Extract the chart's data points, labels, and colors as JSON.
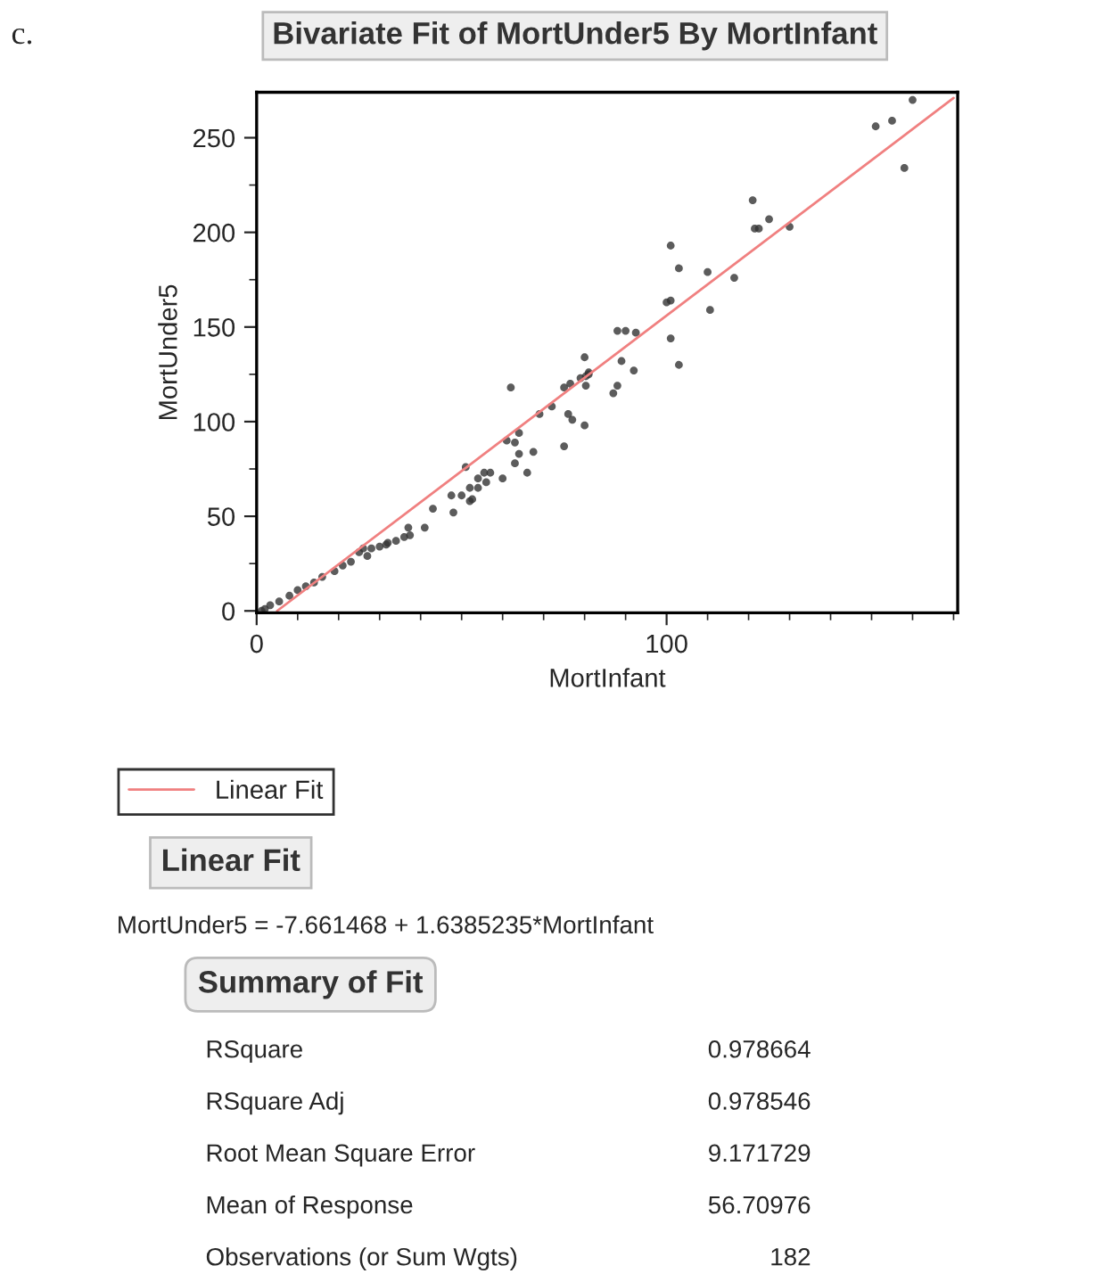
{
  "chart_data": {
    "type": "scatter",
    "title": "Bivariate Fit of MortUnder5 By MortInfant",
    "xlabel": "MortInfant",
    "ylabel": "MortUnder5",
    "xlim": [
      0,
      171
    ],
    "ylim": [
      -1,
      274
    ],
    "xticks": [
      0,
      100
    ],
    "yticks": [
      0,
      50,
      100,
      150,
      200,
      250
    ],
    "grid": false,
    "legend": "bottom left",
    "marker": "circle",
    "series": [
      {
        "color": "#333333",
        "x": [
          160,
          151,
          155,
          158,
          121,
          121.5,
          122.5,
          125,
          130,
          101,
          103,
          110,
          116.5,
          100,
          101,
          110.6,
          88,
          90,
          92.5,
          101,
          80,
          89,
          92,
          103,
          81,
          62,
          75,
          76.5,
          79,
          80.3,
          81,
          80.3,
          87,
          88,
          69,
          72,
          76,
          77,
          80,
          75,
          61,
          64,
          63,
          64,
          63,
          67.5,
          66,
          51,
          54,
          55.5,
          57,
          56,
          54,
          60,
          52,
          52,
          52.6,
          47.5,
          50,
          48,
          43,
          41,
          37,
          37.4,
          36,
          34,
          32,
          30,
          28,
          26,
          27,
          25,
          31.6,
          23,
          21,
          19,
          16,
          14,
          12,
          10,
          8,
          5.5,
          3.3,
          2,
          1.2
        ],
        "values": [
          270,
          256,
          259,
          234,
          217,
          202,
          202,
          207,
          203,
          193,
          181,
          179,
          176,
          163,
          164,
          159,
          148,
          148,
          147,
          144,
          134,
          132,
          127,
          130,
          126,
          118,
          118,
          120,
          123,
          124,
          125,
          119,
          115,
          119,
          104,
          108,
          104,
          101,
          98,
          87,
          90,
          94,
          89,
          83,
          78,
          84,
          73,
          76,
          70,
          73,
          73,
          68,
          65,
          70,
          65,
          58,
          59,
          61,
          61,
          52,
          54,
          44,
          44,
          40,
          39,
          37,
          36,
          34,
          33,
          33,
          29,
          31,
          35,
          26,
          24,
          21,
          18,
          15,
          13,
          11,
          8,
          5,
          3,
          1,
          0
        ]
      },
      {
        "type": "line",
        "name": "Linear Fit",
        "color": "#f08080",
        "line_style": "solid",
        "marker": "none",
        "x": [
          5,
          170
        ],
        "values": [
          0,
          271
        ]
      }
    ],
    "annotations": [
      "c.",
      "Linear Fit",
      "MortUnder5 = -7.661468 + 1.6385235*MortInfant",
      "Summary of Fit",
      "RSquare",
      "0.978664",
      "RSquare Adj",
      "0.978546",
      "Root Mean Square Error",
      "9.171729",
      "Mean of Response",
      "56.70976",
      "Observations (or Sum Wgts)",
      "182"
    ]
  }
}
